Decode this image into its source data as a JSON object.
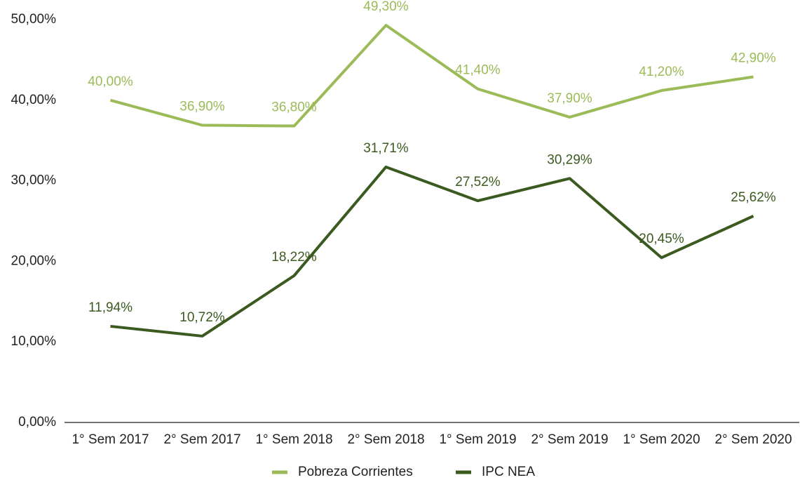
{
  "chart_data": {
    "type": "line",
    "categories": [
      "1° Sem 2017",
      "2° Sem 2017",
      "1° Sem 2018",
      "2° Sem 2018",
      "1° Sem 2019",
      "2° Sem 2019",
      "1° Sem 2020",
      "2° Sem 2020"
    ],
    "series": [
      {
        "name": "Pobreza Corrientes",
        "color": "#9bbb59",
        "values": [
          40.0,
          36.9,
          36.8,
          49.3,
          41.4,
          37.9,
          41.2,
          42.9
        ],
        "value_labels": [
          "40,00%",
          "36,90%",
          "36,80%",
          "49,30%",
          "41,40%",
          "37,90%",
          "41,20%",
          "42,90%"
        ]
      },
      {
        "name": "IPC NEA",
        "color": "#3b5a1f",
        "values": [
          11.94,
          10.72,
          18.22,
          31.71,
          27.52,
          30.29,
          20.45,
          25.62
        ],
        "value_labels": [
          "11,94%",
          "10,72%",
          "18,22%",
          "31,71%",
          "27,52%",
          "30,29%",
          "20,45%",
          "25,62%"
        ]
      }
    ],
    "ylim": [
      0,
      50
    ],
    "yticks": [
      {
        "value": 0,
        "label": "0,00%"
      },
      {
        "value": 10,
        "label": "10,00%"
      },
      {
        "value": 20,
        "label": "20,00%"
      },
      {
        "value": 30,
        "label": "30,00%"
      },
      {
        "value": 40,
        "label": "40,00%"
      },
      {
        "value": 50,
        "label": "50,00%"
      }
    ],
    "grid": false,
    "legend": "bottom"
  }
}
